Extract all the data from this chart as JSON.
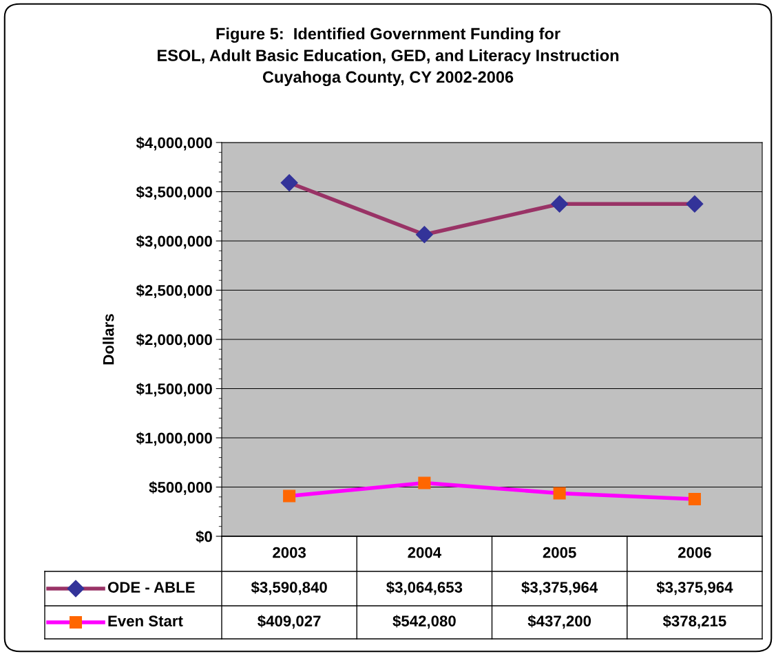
{
  "chart_data": {
    "type": "line",
    "title": "Figure 5:  Identified Government Funding for\nESOL, Adult Basic Education, GED, and Literacy Instruction\nCuyahoga County, CY 2002-2006",
    "ylabel": "Dollars",
    "categories": [
      "2003",
      "2004",
      "2005",
      "2006"
    ],
    "series": [
      {
        "name": "ODE - ABLE",
        "color": "#993366",
        "colors": [
          "#333399",
          "#333399",
          "#333399",
          "#333399"
        ],
        "marker": "diamond",
        "values": [
          3590840,
          3064653,
          3375964,
          3375964
        ],
        "value_labels": [
          "$3,590,840",
          "$3,064,653",
          "$3,375,964",
          "$3,375,964"
        ]
      },
      {
        "name": "Even Start",
        "color": "#ff00ff",
        "colors": [
          "#ff6600",
          "#ff6600",
          "#ff6600",
          "#ff6600"
        ],
        "marker": "square",
        "values": [
          409027,
          542080,
          437200,
          378215
        ],
        "value_labels": [
          "$409,027",
          "$542,080",
          "$437,200",
          "$378,215"
        ]
      }
    ],
    "ylim": [
      0,
      4000000
    ],
    "yticks": [
      {
        "value": 0,
        "label": "$0"
      },
      {
        "value": 500000,
        "label": "$500,000"
      },
      {
        "value": 1000000,
        "label": "$1,000,000"
      },
      {
        "value": 1500000,
        "label": "$1,500,000"
      },
      {
        "value": 2000000,
        "label": "$2,000,000"
      },
      {
        "value": 2500000,
        "label": "$2,500,000"
      },
      {
        "value": 3000000,
        "label": "$3,000,000"
      },
      {
        "value": 3500000,
        "label": "$3,500,000"
      },
      {
        "value": 4000000,
        "label": "$4,000,000"
      }
    ],
    "grid": "y",
    "legend": "bottom"
  }
}
